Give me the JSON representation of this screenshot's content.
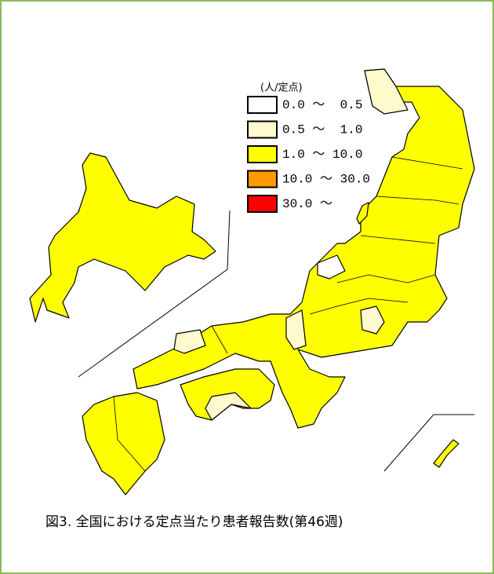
{
  "legend": {
    "unit": "(人/定点)",
    "items": [
      {
        "label": "0.0 ～  0.5",
        "color": "#ffffff"
      },
      {
        "label": "0.5 ～  1.0",
        "color": "#fffacd"
      },
      {
        "label": "1.0 ～ 10.0",
        "color": "#ffff00"
      },
      {
        "label": "10.0 ～ 30.0",
        "color": "#ff9900"
      },
      {
        "label": "30.0 ～",
        "color": "#ff0000"
      }
    ]
  },
  "caption": "図3. 全国における定点当たり患者報告数(第46週)"
}
